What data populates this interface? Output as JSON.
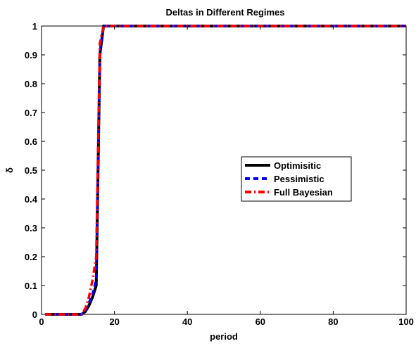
{
  "chart_data": {
    "type": "line",
    "title": "Deltas in Different Regimes",
    "xlabel": "period",
    "ylabel": "δ",
    "xlim": [
      0,
      100
    ],
    "ylim": [
      0,
      1
    ],
    "xticks": [
      0,
      20,
      40,
      60,
      80,
      100
    ],
    "yticks": [
      0,
      0.1,
      0.2,
      0.3,
      0.4,
      0.5,
      0.6,
      0.7,
      0.8,
      0.9,
      1
    ],
    "xtick_labels": [
      "0",
      "20",
      "40",
      "60",
      "80",
      "100"
    ],
    "ytick_labels": [
      "0",
      "0.1",
      "0.2",
      "0.3",
      "0.4",
      "0.5",
      "0.6",
      "0.7",
      "0.8",
      "0.9",
      "1"
    ],
    "grid": false,
    "legend_placement": "center-right",
    "series": [
      {
        "name": "Optimisitic",
        "color": "#000000",
        "style": "solid",
        "x": [
          1,
          2,
          3,
          4,
          5,
          6,
          7,
          8,
          9,
          10,
          11,
          12,
          13,
          14,
          15,
          16,
          17,
          18,
          19,
          20,
          30,
          40,
          50,
          60,
          70,
          80,
          90,
          100
        ],
        "y": [
          0,
          0,
          0,
          0,
          0,
          0,
          0,
          0,
          0,
          0,
          0,
          0.01,
          0.03,
          0.06,
          0.1,
          0.9,
          1,
          1,
          1,
          1,
          1,
          1,
          1,
          1,
          1,
          1,
          1,
          1
        ]
      },
      {
        "name": "Pessimistic",
        "color": "#0000ff",
        "style": "dashed",
        "x": [
          1,
          2,
          3,
          4,
          5,
          6,
          7,
          8,
          9,
          10,
          11,
          12,
          13,
          14,
          15,
          16,
          17,
          18,
          19,
          20,
          30,
          40,
          50,
          60,
          70,
          80,
          90,
          100
        ],
        "y": [
          0,
          0,
          0,
          0,
          0,
          0,
          0,
          0,
          0,
          0,
          0,
          0.01,
          0.04,
          0.07,
          0.12,
          0.91,
          1,
          1,
          1,
          1,
          1,
          1,
          1,
          1,
          1,
          1,
          1,
          1
        ]
      },
      {
        "name": "Full Bayesian",
        "color": "#ff0000",
        "style": "dashdot",
        "x": [
          1,
          2,
          3,
          4,
          5,
          6,
          7,
          8,
          9,
          10,
          11,
          12,
          13,
          14,
          15,
          16,
          17,
          18,
          19,
          20,
          30,
          40,
          50,
          60,
          70,
          80,
          90,
          100
        ],
        "y": [
          0,
          0,
          0,
          0,
          0,
          0,
          0,
          0,
          0,
          0,
          0,
          0.02,
          0.06,
          0.12,
          0.2,
          0.94,
          1,
          1,
          1,
          1,
          1,
          1,
          1,
          1,
          1,
          1,
          1,
          1
        ]
      }
    ]
  }
}
